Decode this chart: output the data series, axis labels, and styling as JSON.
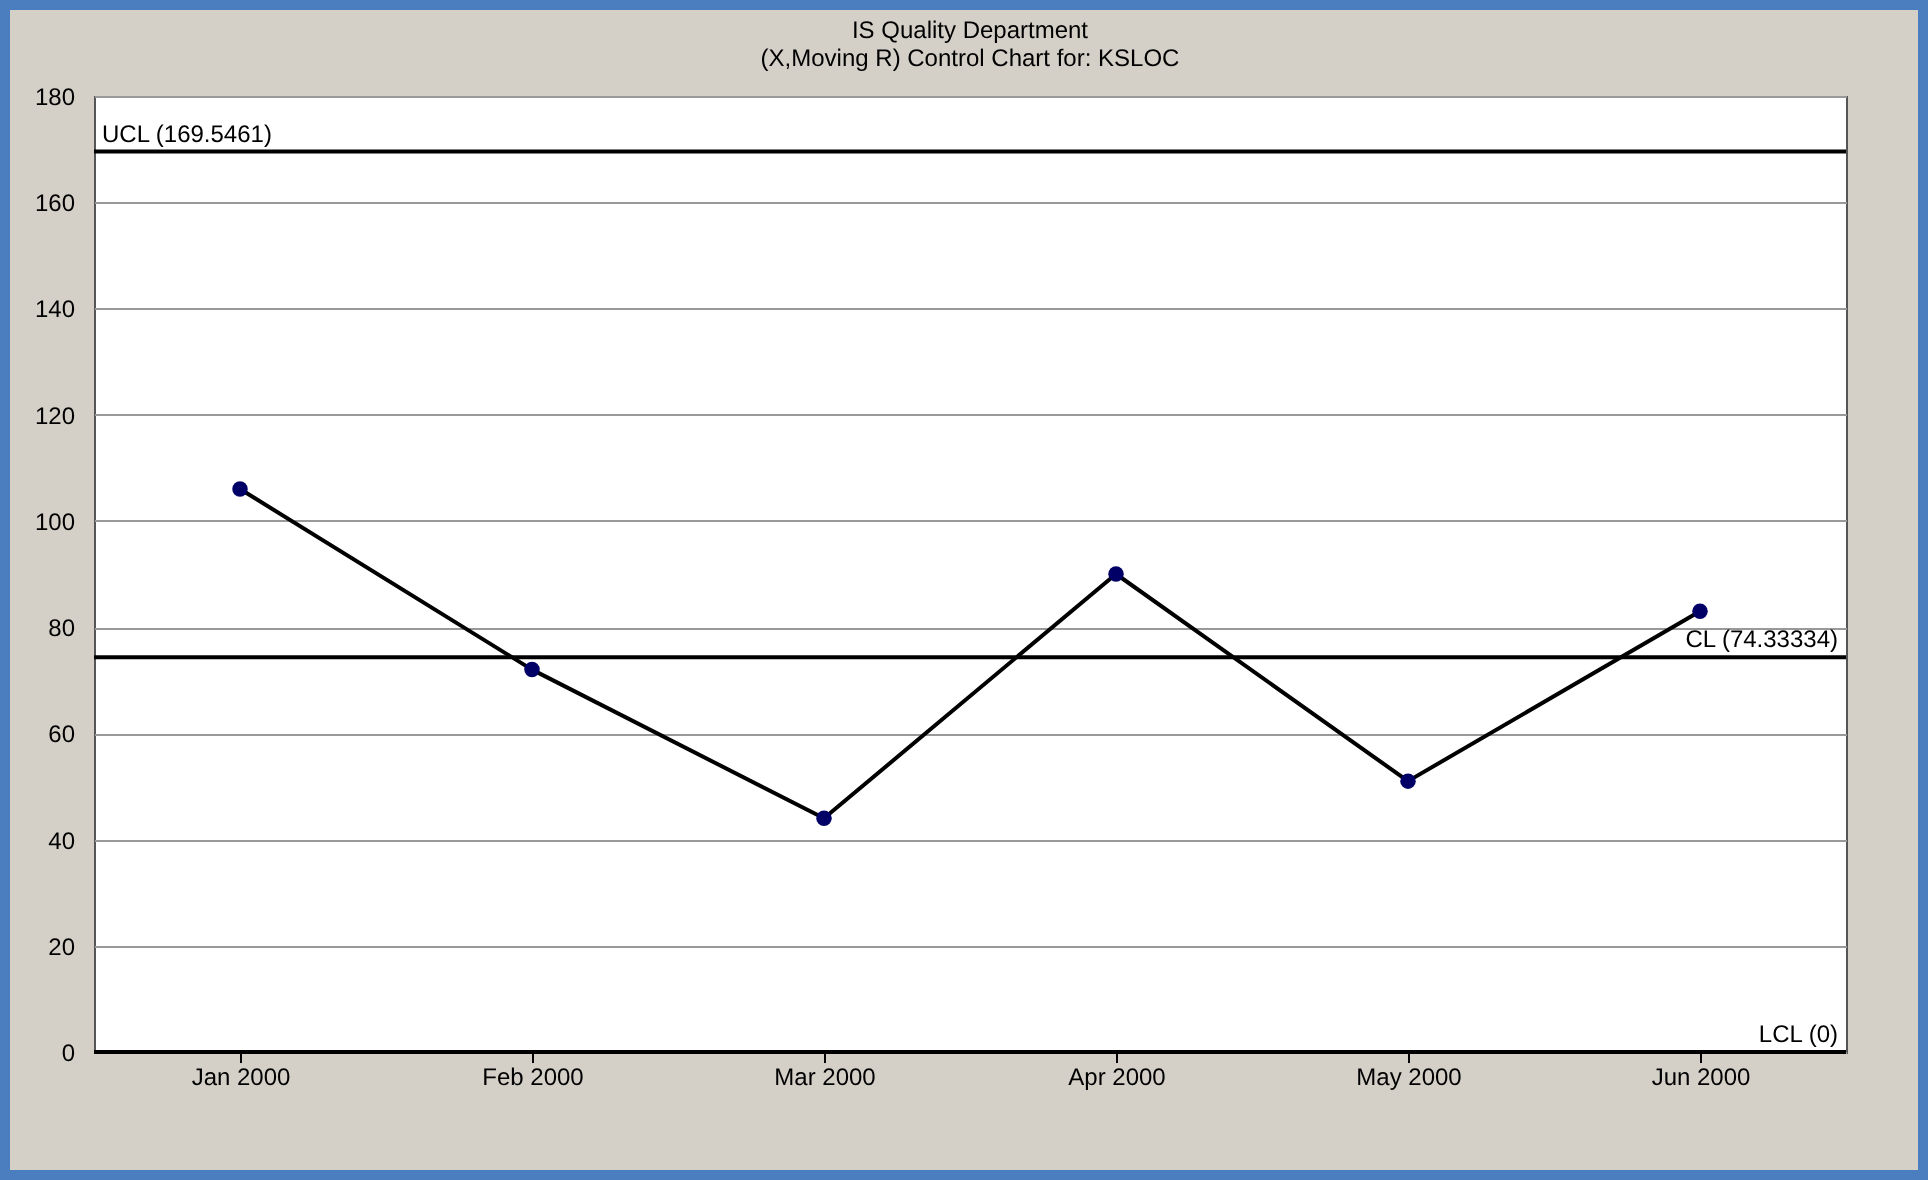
{
  "chart_data": {
    "type": "line",
    "title": "IS Quality Department",
    "subtitle": "(X,Moving R) Control Chart for: KSLOC",
    "categories": [
      "Jan 2000",
      "Feb 2000",
      "Mar 2000",
      "Apr 2000",
      "May 2000",
      "Jun 2000"
    ],
    "series": [
      {
        "color": "#000000",
        "values": [
          106,
          72,
          44,
          90,
          51,
          83
        ]
      }
    ],
    "ylim": [
      0,
      180
    ],
    "yticks": [
      0,
      20,
      40,
      60,
      80,
      100,
      120,
      140,
      160,
      180
    ],
    "grid": "y",
    "marker": "circle",
    "line_style": "solid",
    "ref_lines": [
      {
        "axis": "y",
        "value": 169.5461,
        "label": "UCL (169.5461)",
        "color": "#000000"
      },
      {
        "axis": "y",
        "value": 74.33334,
        "label": "CL (74.33334)",
        "color": "#000000"
      },
      {
        "axis": "y",
        "value": 0,
        "label": "LCL (0)",
        "color": "#000000"
      }
    ]
  }
}
